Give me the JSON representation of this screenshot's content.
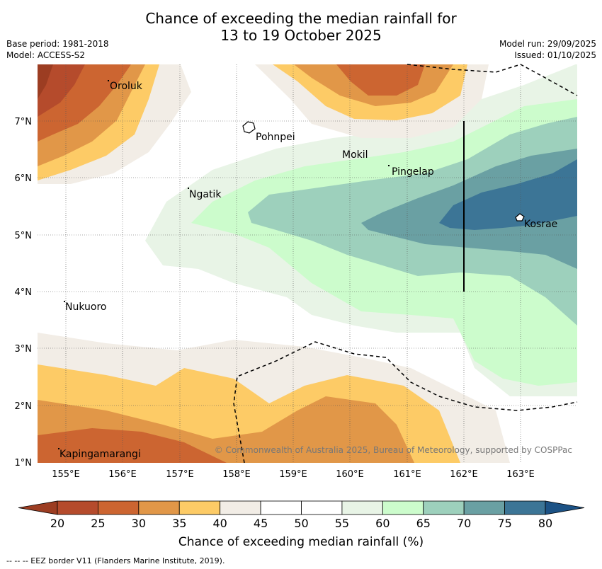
{
  "title": {
    "line1": "Chance of exceeding the median rainfall for",
    "line2": "13 to 19 October 2025"
  },
  "meta": {
    "base_period": "Base period: 1981-2018",
    "model": "Model: ACCESS-S2",
    "model_run": "Model run: 29/09/2025",
    "issued": "Issued: 01/10/2025"
  },
  "map": {
    "lon_ticks": [
      "155°E",
      "156°E",
      "157°E",
      "158°E",
      "159°E",
      "160°E",
      "161°E",
      "162°E",
      "163°E"
    ],
    "lat_ticks": [
      "7°N",
      "6°N",
      "5°N",
      "4°N",
      "3°N",
      "2°N",
      "1°N"
    ],
    "places": [
      "Oroluk",
      "Pohnpei",
      "Mokil",
      "Pingelap",
      "Ngatik",
      "Kosrae",
      "Nukuoro",
      "Kapingamarangi"
    ],
    "copyright": "© Commonwealth of Australia 2025, Bureau of Meteorology, supported by COSPPac"
  },
  "colorbar": {
    "ticks": [
      "20",
      "25",
      "30",
      "35",
      "40",
      "45",
      "50",
      "55",
      "60",
      "65",
      "70",
      "75",
      "80"
    ],
    "colors": [
      "#9c3d22",
      "#b54b2c",
      "#cc6531",
      "#e19748",
      "#fdcb66",
      "#f2ede6",
      "#ffffff",
      "#ffffff",
      "#e8f4e6",
      "#ccfccc",
      "#9dd0bc",
      "#6aa0a3",
      "#3c7596",
      "#1c5285"
    ],
    "label": "Chance of exceeding median rainfall (%)"
  },
  "footer": "--  --  -- EEZ border V11 (Flanders Marine Institute, 2019)."
}
